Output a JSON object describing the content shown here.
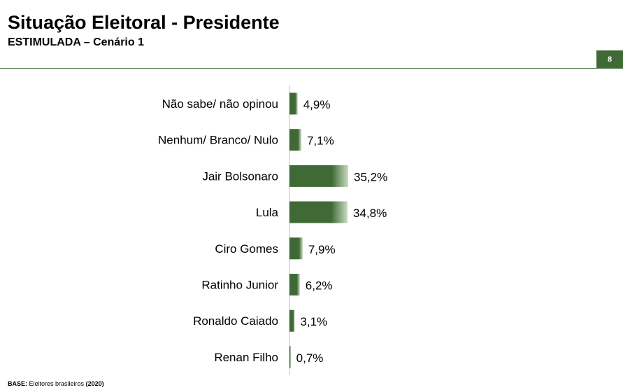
{
  "header": {
    "title": "Situação Eleitoral - Presidente",
    "subtitle": "ESTIMULADA – Cenário 1",
    "page_number": "8"
  },
  "footer": {
    "base_label": "BASE:",
    "base_text": "Eleitores brasileiros",
    "base_year": "(2020)"
  },
  "colors": {
    "bar": "#3f6a36",
    "bar_highlight": "#c9dcc0",
    "accent": "#3f6a36"
  },
  "chart_data": {
    "type": "bar",
    "orientation": "horizontal",
    "categories": [
      "Não sabe/ não opinou",
      "Nenhum/ Branco/ Nulo",
      "Jair Bolsonaro",
      "Lula",
      "Ciro Gomes",
      "Ratinho Junior",
      "Ronaldo Caiado",
      "Renan Filho"
    ],
    "values": [
      4.9,
      7.1,
      35.2,
      34.8,
      7.9,
      6.2,
      3.1,
      0.7
    ],
    "value_labels": [
      "4,9%",
      "7,1%",
      "35,2%",
      "34,8%",
      "7,9%",
      "6,2%",
      "3,1%",
      "0,7%"
    ],
    "xlim": [
      0,
      100
    ],
    "grid": false,
    "legend": "none"
  }
}
